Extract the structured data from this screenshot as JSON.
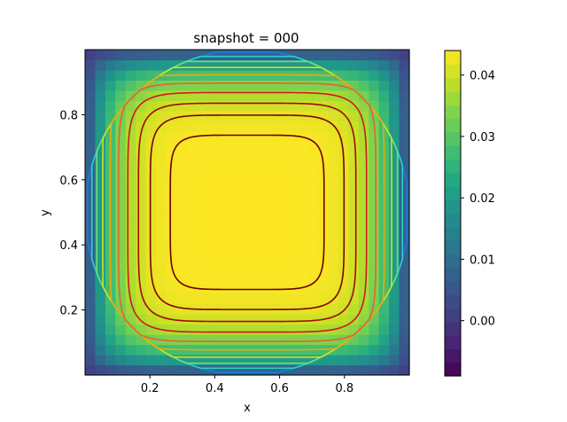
{
  "chart_data": {
    "type": "heatmap",
    "title": "snapshot = 000",
    "xlabel": "x",
    "ylabel": "y",
    "xlim": [
      0.0,
      1.0
    ],
    "ylim": [
      0.0,
      1.0
    ],
    "x_ticks": [
      0.2,
      0.4,
      0.6,
      0.8
    ],
    "x_tick_labels": [
      "0.2",
      "0.4",
      "0.6",
      "0.8"
    ],
    "y_ticks": [
      0.2,
      0.4,
      0.6,
      0.8
    ],
    "y_tick_labels": [
      "0.2",
      "0.4",
      "0.6",
      "0.8"
    ],
    "grid": false,
    "grid_resolution": 32,
    "colormap": "viridis",
    "colorbar": {
      "range": [
        -0.009,
        0.044
      ],
      "ticks": [
        0.0,
        0.01,
        0.02,
        0.03,
        0.04
      ],
      "tick_labels": [
        "0.00",
        "0.01",
        "0.02",
        "0.03",
        "0.04"
      ]
    },
    "field_peak": 0.044,
    "contours": [
      {
        "level": 0.004,
        "color": "#1f78e6"
      },
      {
        "level": 0.01,
        "color": "#27d3c8"
      },
      {
        "level": 0.016,
        "color": "#6fe07a"
      },
      {
        "level": 0.022,
        "color": "#d2e21c"
      },
      {
        "level": 0.028,
        "color": "#f2a900"
      },
      {
        "level": 0.033,
        "color": "#e8622a"
      },
      {
        "level": 0.037,
        "color": "#cc1b1b"
      },
      {
        "level": 0.04,
        "color": "#9e0b0b"
      },
      {
        "level": 0.042,
        "color": "#800000"
      },
      {
        "level": 0.0435,
        "color": "#6b0000"
      }
    ]
  }
}
